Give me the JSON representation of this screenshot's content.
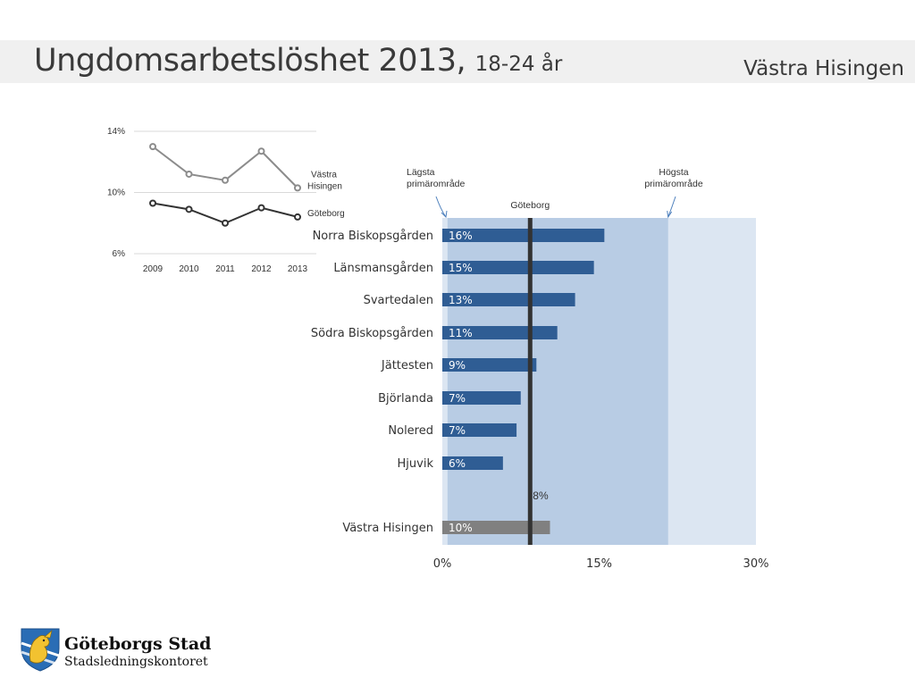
{
  "header": {
    "title": "Ungdomsarbetslöshet 2013,",
    "subtitle": "18-24 år",
    "region": "Västra Hisingen"
  },
  "footer": {
    "org_name": "Göteborgs Stad",
    "org_sub": "Stadsledningskontoret"
  },
  "colors": {
    "bar": "#2f5d94",
    "bar_total": "#808080",
    "range_band": "#b8cce4",
    "background_band": "#dce6f2",
    "line_region": "#8c8c8c",
    "line_city": "#333333",
    "header_band": "#f0f0f0"
  },
  "chart_data": [
    {
      "type": "line",
      "x": [
        "2009",
        "2010",
        "2011",
        "2012",
        "2013"
      ],
      "ylim": [
        6,
        14
      ],
      "yticks": [
        "14%",
        "10%",
        "6%"
      ],
      "ytick_values": [
        14,
        10,
        6
      ],
      "series": [
        {
          "name": "Västra Hisingen",
          "name_lines": [
            "Västra",
            "Hisingen"
          ],
          "values": [
            13.0,
            11.2,
            10.8,
            12.7,
            10.3
          ],
          "color": "#8c8c8c"
        },
        {
          "name": "Göteborg",
          "name_lines": [
            "Göteborg"
          ],
          "values": [
            9.3,
            8.9,
            8.0,
            9.0,
            8.4
          ],
          "color": "#333333"
        }
      ]
    },
    {
      "type": "bar",
      "orientation": "horizontal",
      "categories": [
        "Norra Biskopsgården",
        "Länsmansgården",
        "Svartedalen",
        "Södra Biskopsgården",
        "Jättesten",
        "Björlanda",
        "Nolered",
        "Hjuvik",
        "Västra Hisingen"
      ],
      "values": [
        15.5,
        14.5,
        12.7,
        11.0,
        9.0,
        7.5,
        7.1,
        5.8,
        10.3
      ],
      "labels": [
        "16%",
        "15%",
        "13%",
        "11%",
        "9%",
        "7%",
        "7%",
        "6%",
        "10%"
      ],
      "xlim": [
        0,
        30
      ],
      "xticks": [
        "0%",
        "15%",
        "30%"
      ],
      "xtick_values": [
        0,
        15,
        30
      ],
      "reference": {
        "label": "Göteborg",
        "value": 8.4,
        "value_label": "8%"
      },
      "range": {
        "low_label": [
          "Lägsta",
          "primärområde"
        ],
        "high_label": [
          "Högsta",
          "primärområde"
        ],
        "low": 0.5,
        "high": 21.6
      }
    }
  ]
}
